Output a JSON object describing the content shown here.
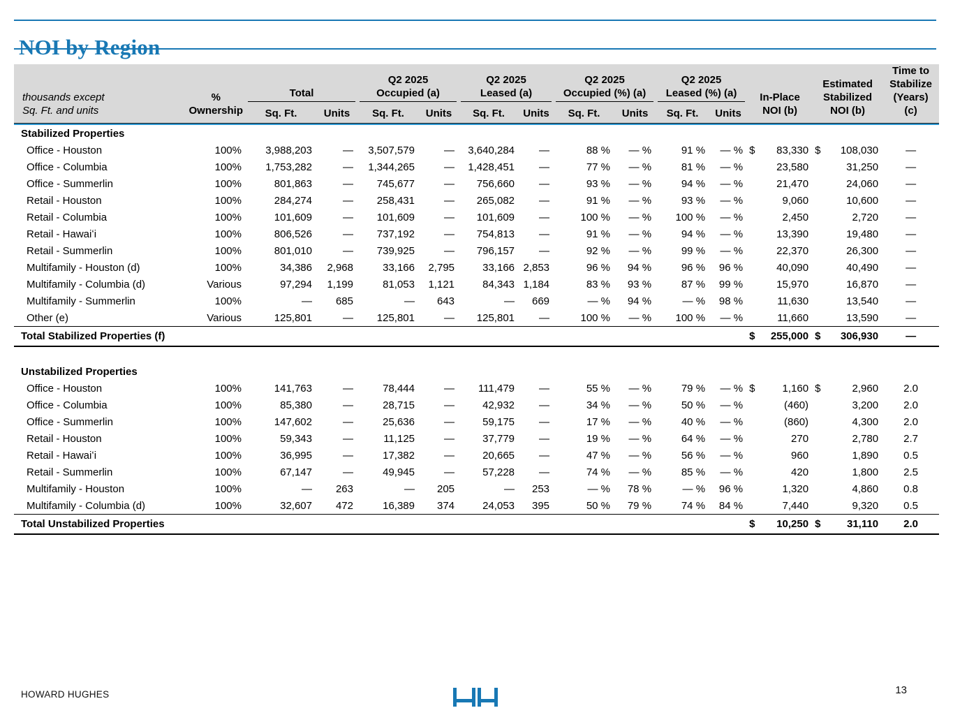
{
  "page": {
    "title": "NOI by Region",
    "accent_color": "#1878b4",
    "header_underline_color": "#2a95d0",
    "header_bg_color": "#d9d9d9",
    "footer": {
      "company": "HOWARD HUGHES",
      "page_number": "13",
      "logo": "hh-logo"
    }
  },
  "table": {
    "note_lines": [
      "thousands except",
      "Sq. Ft. and units"
    ],
    "ownership_header_lines": [
      "%",
      "Ownership"
    ],
    "groups": [
      {
        "label_lines": [
          "Total"
        ],
        "cols": [
          "Sq. Ft.",
          "Units"
        ]
      },
      {
        "label_lines": [
          "Q2 2025",
          "Occupied (a)"
        ],
        "cols": [
          "Sq. Ft.",
          "Units"
        ]
      },
      {
        "label_lines": [
          "Q2 2025",
          "Leased (a)"
        ],
        "cols": [
          "Sq. Ft.",
          "Units"
        ]
      },
      {
        "label_lines": [
          "Q2 2025",
          "Occupied (%) (a)"
        ],
        "cols": [
          "Sq. Ft.",
          "Units"
        ]
      },
      {
        "label_lines": [
          "Q2 2025",
          "Leased (%) (a)"
        ],
        "cols": [
          "Sq. Ft.",
          "Units"
        ]
      }
    ],
    "single_headers": [
      {
        "name": "header-inplace-noi",
        "lines": [
          "In-Place",
          "NOI (b)"
        ]
      },
      {
        "name": "header-estimated-stabilized-noi",
        "lines": [
          "Estimated",
          "Stabilized",
          "NOI (b)"
        ]
      },
      {
        "name": "header-time-to-stabilize",
        "lines": [
          "Time to",
          "Stabilize",
          "(Years)",
          "(c)"
        ]
      }
    ],
    "sections": [
      {
        "title": "Stabilized Properties",
        "gap_after": true,
        "rows": [
          {
            "label": "Office - Houston",
            "own": "100%",
            "cells": [
              "3,988,203",
              "—",
              "3,507,579",
              "—",
              "3,640,284",
              "—",
              "88 %",
              "— %",
              "91 %",
              "— %"
            ],
            "inplace": {
              "d": "$",
              "v": "83,330"
            },
            "est": {
              "d": "$",
              "v": "108,030"
            },
            "time": "—"
          },
          {
            "label": "Office - Columbia",
            "own": "100%",
            "cells": [
              "1,753,282",
              "—",
              "1,344,265",
              "—",
              "1,428,451",
              "—",
              "77 %",
              "— %",
              "81 %",
              "— %"
            ],
            "inplace": {
              "d": "",
              "v": "23,580"
            },
            "est": {
              "d": "",
              "v": "31,250"
            },
            "time": "—"
          },
          {
            "label": "Office - Summerlin",
            "own": "100%",
            "cells": [
              "801,863",
              "—",
              "745,677",
              "—",
              "756,660",
              "—",
              "93 %",
              "— %",
              "94 %",
              "— %"
            ],
            "inplace": {
              "d": "",
              "v": "21,470"
            },
            "est": {
              "d": "",
              "v": "24,060"
            },
            "time": "—"
          },
          {
            "label": "Retail - Houston",
            "own": "100%",
            "cells": [
              "284,274",
              "—",
              "258,431",
              "—",
              "265,082",
              "—",
              "91 %",
              "— %",
              "93 %",
              "— %"
            ],
            "inplace": {
              "d": "",
              "v": "9,060"
            },
            "est": {
              "d": "",
              "v": "10,600"
            },
            "time": "—"
          },
          {
            "label": "Retail - Columbia",
            "own": "100%",
            "cells": [
              "101,609",
              "—",
              "101,609",
              "—",
              "101,609",
              "—",
              "100 %",
              "— %",
              "100 %",
              "— %"
            ],
            "inplace": {
              "d": "",
              "v": "2,450"
            },
            "est": {
              "d": "",
              "v": "2,720"
            },
            "time": "—"
          },
          {
            "label": "Retail - Hawaiʻi",
            "own": "100%",
            "cells": [
              "806,526",
              "—",
              "737,192",
              "—",
              "754,813",
              "—",
              "91 %",
              "— %",
              "94 %",
              "— %"
            ],
            "inplace": {
              "d": "",
              "v": "13,390"
            },
            "est": {
              "d": "",
              "v": "19,480"
            },
            "time": "—"
          },
          {
            "label": "Retail - Summerlin",
            "own": "100%",
            "cells": [
              "801,010",
              "—",
              "739,925",
              "—",
              "796,157",
              "—",
              "92 %",
              "— %",
              "99 %",
              "— %"
            ],
            "inplace": {
              "d": "",
              "v": "22,370"
            },
            "est": {
              "d": "",
              "v": "26,300"
            },
            "time": "—"
          },
          {
            "label": "Multifamily - Houston (d)",
            "own": "100%",
            "cells": [
              "34,386",
              "2,968",
              "33,166",
              "2,795",
              "33,166",
              "2,853",
              "96 %",
              "94 %",
              "96 %",
              "96 %"
            ],
            "inplace": {
              "d": "",
              "v": "40,090"
            },
            "est": {
              "d": "",
              "v": "40,490"
            },
            "time": "—"
          },
          {
            "label": "Multifamily - Columbia (d)",
            "own": "Various",
            "cells": [
              "97,294",
              "1,199",
              "81,053",
              "1,121",
              "84,343",
              "1,184",
              "83 %",
              "93 %",
              "87 %",
              "99 %"
            ],
            "inplace": {
              "d": "",
              "v": "15,970"
            },
            "est": {
              "d": "",
              "v": "16,870"
            },
            "time": "—"
          },
          {
            "label": "Multifamily - Summerlin",
            "own": "100%",
            "cells": [
              "—",
              "685",
              "—",
              "643",
              "—",
              "669",
              "— %",
              "94 %",
              "— %",
              "98 %"
            ],
            "inplace": {
              "d": "",
              "v": "11,630"
            },
            "est": {
              "d": "",
              "v": "13,540"
            },
            "time": "—"
          },
          {
            "label": "Other (e)",
            "own": "Various",
            "cells": [
              "125,801",
              "—",
              "125,801",
              "—",
              "125,801",
              "—",
              "100 %",
              "— %",
              "100 %",
              "— %"
            ],
            "inplace": {
              "d": "",
              "v": "11,660"
            },
            "est": {
              "d": "",
              "v": "13,590"
            },
            "time": "—"
          }
        ],
        "total": {
          "label": "Total Stabilized Properties (f)",
          "inplace": {
            "d": "$",
            "v": "255,000"
          },
          "est": {
            "d": "$",
            "v": "306,930"
          },
          "time": "—"
        }
      },
      {
        "title": "Unstabilized Properties",
        "gap_after": false,
        "rows": [
          {
            "label": "Office - Houston",
            "own": "100%",
            "cells": [
              "141,763",
              "—",
              "78,444",
              "—",
              "111,479",
              "—",
              "55 %",
              "— %",
              "79 %",
              "— %"
            ],
            "inplace": {
              "d": "$",
              "v": "1,160"
            },
            "est": {
              "d": "$",
              "v": "2,960"
            },
            "time": "2.0"
          },
          {
            "label": "Office - Columbia",
            "own": "100%",
            "cells": [
              "85,380",
              "—",
              "28,715",
              "—",
              "42,932",
              "—",
              "34 %",
              "— %",
              "50 %",
              "— %"
            ],
            "inplace": {
              "d": "",
              "v": "(460)"
            },
            "est": {
              "d": "",
              "v": "3,200"
            },
            "time": "2.0"
          },
          {
            "label": "Office - Summerlin",
            "own": "100%",
            "cells": [
              "147,602",
              "—",
              "25,636",
              "—",
              "59,175",
              "—",
              "17 %",
              "— %",
              "40 %",
              "— %"
            ],
            "inplace": {
              "d": "",
              "v": "(860)"
            },
            "est": {
              "d": "",
              "v": "4,300"
            },
            "time": "2.0"
          },
          {
            "label": "Retail - Houston",
            "own": "100%",
            "cells": [
              "59,343",
              "—",
              "11,125",
              "—",
              "37,779",
              "—",
              "19 %",
              "— %",
              "64 %",
              "— %"
            ],
            "inplace": {
              "d": "",
              "v": "270"
            },
            "est": {
              "d": "",
              "v": "2,780"
            },
            "time": "2.7"
          },
          {
            "label": "Retail - Hawaiʻi",
            "own": "100%",
            "cells": [
              "36,995",
              "—",
              "17,382",
              "—",
              "20,665",
              "—",
              "47 %",
              "— %",
              "56 %",
              "— %"
            ],
            "inplace": {
              "d": "",
              "v": "960"
            },
            "est": {
              "d": "",
              "v": "1,890"
            },
            "time": "0.5"
          },
          {
            "label": "Retail - Summerlin",
            "own": "100%",
            "cells": [
              "67,147",
              "—",
              "49,945",
              "—",
              "57,228",
              "—",
              "74 %",
              "— %",
              "85 %",
              "— %"
            ],
            "inplace": {
              "d": "",
              "v": "420"
            },
            "est": {
              "d": "",
              "v": "1,800"
            },
            "time": "2.5"
          },
          {
            "label": "Multifamily - Houston",
            "own": "100%",
            "cells": [
              "—",
              "263",
              "—",
              "205",
              "—",
              "253",
              "— %",
              "78 %",
              "— %",
              "96 %"
            ],
            "inplace": {
              "d": "",
              "v": "1,320"
            },
            "est": {
              "d": "",
              "v": "4,860"
            },
            "time": "0.8"
          },
          {
            "label": "Multifamily - Columbia (d)",
            "own": "100%",
            "cells": [
              "32,607",
              "472",
              "16,389",
              "374",
              "24,053",
              "395",
              "50 %",
              "79 %",
              "74 %",
              "84 %"
            ],
            "inplace": {
              "d": "",
              "v": "7,440"
            },
            "est": {
              "d": "",
              "v": "9,320"
            },
            "time": "0.5"
          }
        ],
        "total": {
          "label": "Total Unstabilized Properties",
          "inplace": {
            "d": "$",
            "v": "10,250"
          },
          "est": {
            "d": "$",
            "v": "31,110"
          },
          "time": "2.0"
        }
      }
    ]
  }
}
